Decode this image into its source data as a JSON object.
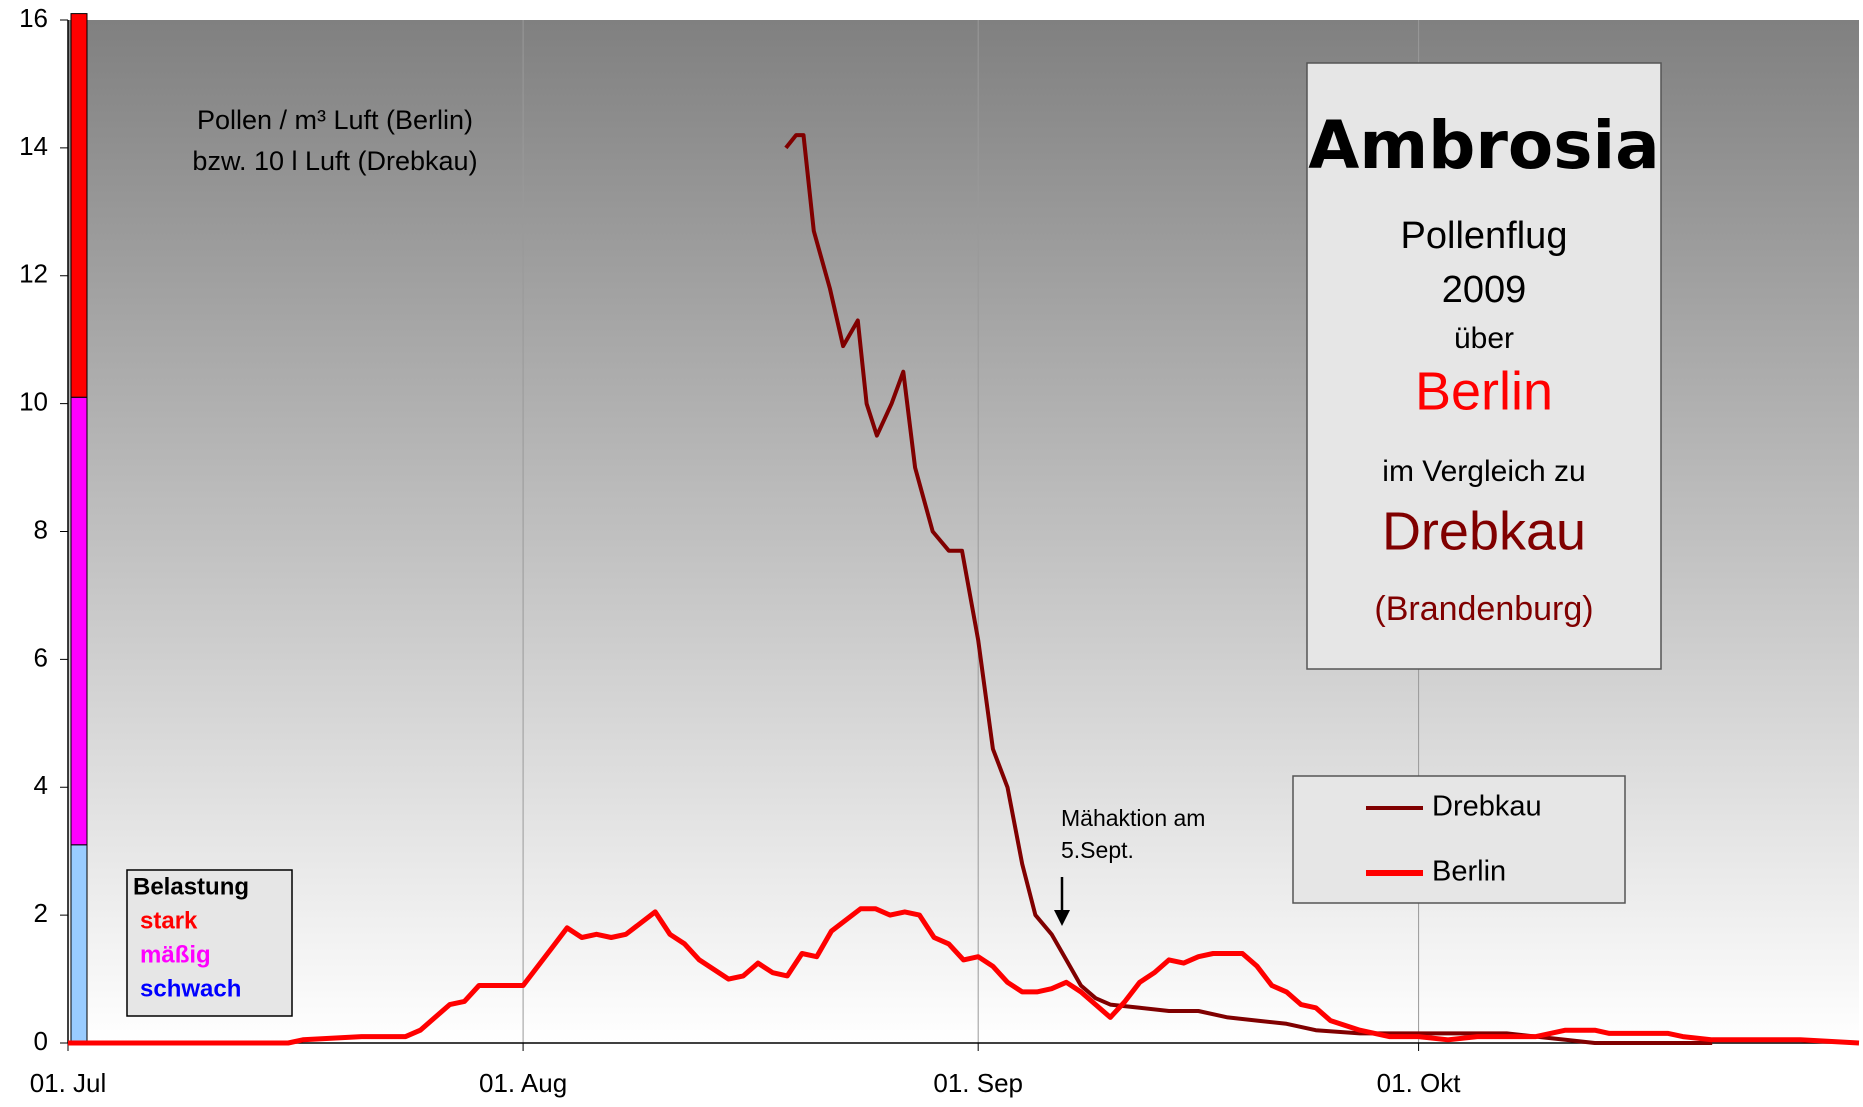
{
  "chart_data": {
    "type": "line",
    "title": "Ambrosia",
    "subtitle": [
      "Pollenflug",
      "2009",
      "über"
    ],
    "city": "Berlin",
    "comparison": "im Vergleich zu",
    "city2": "Drebkau",
    "region": "(Brandenburg)",
    "y_label": [
      "Pollen / m³ Luft (Berlin)",
      "bzw. 10 l Luft (Drebkau)"
    ],
    "annotation": [
      "Mähaktion am",
      "5.Sept."
    ],
    "xlim": [
      0,
      122
    ],
    "xticks": [
      {
        "value": 0,
        "label": "01. Jul"
      },
      {
        "value": 31,
        "label": "01. Aug"
      },
      {
        "value": 62,
        "label": "01. Sep"
      },
      {
        "value": 92,
        "label": "01. Okt"
      }
    ],
    "ylim": [
      0,
      16
    ],
    "yticks": [
      0,
      2,
      4,
      6,
      8,
      10,
      12,
      14,
      16
    ],
    "grid": true,
    "bands_title": "Belastung",
    "bands": [
      {
        "name": "schwach",
        "from": 0,
        "to": 3.1,
        "color": "#99ccff",
        "text_color": "#0000ff"
      },
      {
        "name": "mäßig",
        "from": 3.1,
        "to": 10.1,
        "color": "#ff00ff",
        "text_color": "#ff00ff"
      },
      {
        "name": "stark",
        "from": 10.1,
        "to": 16.1,
        "color": "#ff0000",
        "text_color": "#ff0000"
      }
    ],
    "series": [
      {
        "name": "Drebkau",
        "color": "#800000",
        "x": [
          48.9,
          49.6,
          50.1,
          50.8,
          51.9,
          52.8,
          53.8,
          54.4,
          55.1,
          56.1,
          56.9,
          57.7,
          58.9,
          60,
          60.9,
          62,
          63,
          64,
          65,
          65.9,
          67,
          68,
          69,
          70,
          71,
          73,
          75,
          77,
          79,
          81,
          83,
          85,
          88,
          92,
          94,
          98,
          100,
          102,
          104,
          112
        ],
        "values": [
          14.0,
          14.2,
          14.2,
          12.7,
          11.8,
          10.9,
          11.3,
          10.0,
          9.5,
          10.0,
          10.5,
          9.0,
          8.0,
          7.7,
          7.7,
          6.3,
          4.6,
          4.0,
          2.8,
          2.0,
          1.7,
          1.3,
          0.9,
          0.7,
          0.6,
          0.55,
          0.5,
          0.5,
          0.4,
          0.35,
          0.3,
          0.2,
          0.15,
          0.15,
          0.15,
          0.15,
          0.1,
          0.05,
          0.0,
          0.0
        ]
      },
      {
        "name": "Berlin",
        "color": "#ff0000",
        "x": [
          0,
          15,
          16,
          20,
          23,
          24,
          26,
          27,
          28,
          31,
          33,
          34,
          35,
          36,
          37,
          38,
          40,
          41,
          42,
          43,
          45,
          46,
          47,
          48,
          49,
          50,
          51,
          52,
          54,
          55,
          56,
          57,
          58,
          59,
          60,
          61,
          62,
          63,
          64,
          65,
          66,
          67,
          68,
          69,
          70,
          71,
          72,
          73,
          74,
          75,
          76,
          77,
          78,
          80,
          81,
          82,
          83,
          84,
          85,
          86,
          88,
          90,
          92,
          94,
          96,
          98,
          100,
          102,
          104,
          105,
          109,
          110,
          112,
          118,
          122
        ],
        "values": [
          0,
          0,
          0.05,
          0.1,
          0.1,
          0.2,
          0.6,
          0.65,
          0.9,
          0.9,
          1.5,
          1.8,
          1.65,
          1.7,
          1.65,
          1.7,
          2.05,
          1.7,
          1.55,
          1.3,
          1.0,
          1.05,
          1.25,
          1.1,
          1.05,
          1.4,
          1.35,
          1.75,
          2.1,
          2.1,
          2.0,
          2.05,
          2.0,
          1.65,
          1.55,
          1.3,
          1.35,
          1.2,
          0.95,
          0.8,
          0.8,
          0.85,
          0.95,
          0.8,
          0.6,
          0.4,
          0.65,
          0.95,
          1.1,
          1.3,
          1.25,
          1.35,
          1.4,
          1.4,
          1.2,
          0.9,
          0.8,
          0.6,
          0.55,
          0.35,
          0.2,
          0.1,
          0.1,
          0.05,
          0.1,
          0.1,
          0.1,
          0.2,
          0.2,
          0.15,
          0.15,
          0.1,
          0.05,
          0.05,
          0
        ]
      }
    ]
  }
}
